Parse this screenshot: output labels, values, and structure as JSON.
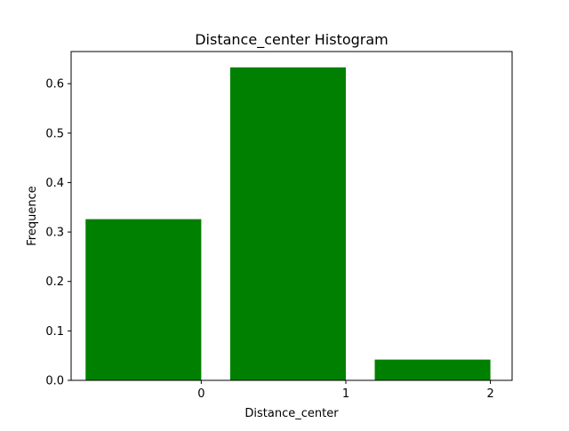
{
  "chart_data": {
    "type": "bar",
    "title": "Distance_center Histogram",
    "xlabel": "Distance_center",
    "ylabel": "Frequence",
    "bins": [
      {
        "x_start": -0.8,
        "x_end": 0.0,
        "value": 0.326
      },
      {
        "x_start": 0.2,
        "x_end": 1.0,
        "value": 0.633
      },
      {
        "x_start": 1.2,
        "x_end": 2.0,
        "value": 0.042
      }
    ],
    "xlim": [
      -0.9,
      2.15
    ],
    "ylim": [
      0,
      0.665
    ],
    "x_ticks": [
      {
        "value": 0,
        "label": "0"
      },
      {
        "value": 1,
        "label": "1"
      },
      {
        "value": 2,
        "label": "2"
      }
    ],
    "y_ticks": [
      {
        "value": 0.0,
        "label": "0.0"
      },
      {
        "value": 0.1,
        "label": "0.1"
      },
      {
        "value": 0.2,
        "label": "0.2"
      },
      {
        "value": 0.3,
        "label": "0.3"
      },
      {
        "value": 0.4,
        "label": "0.4"
      },
      {
        "value": 0.5,
        "label": "0.5"
      },
      {
        "value": 0.6,
        "label": "0.6"
      }
    ],
    "bar_color": "#008000",
    "grid": false,
    "legend": "none"
  }
}
